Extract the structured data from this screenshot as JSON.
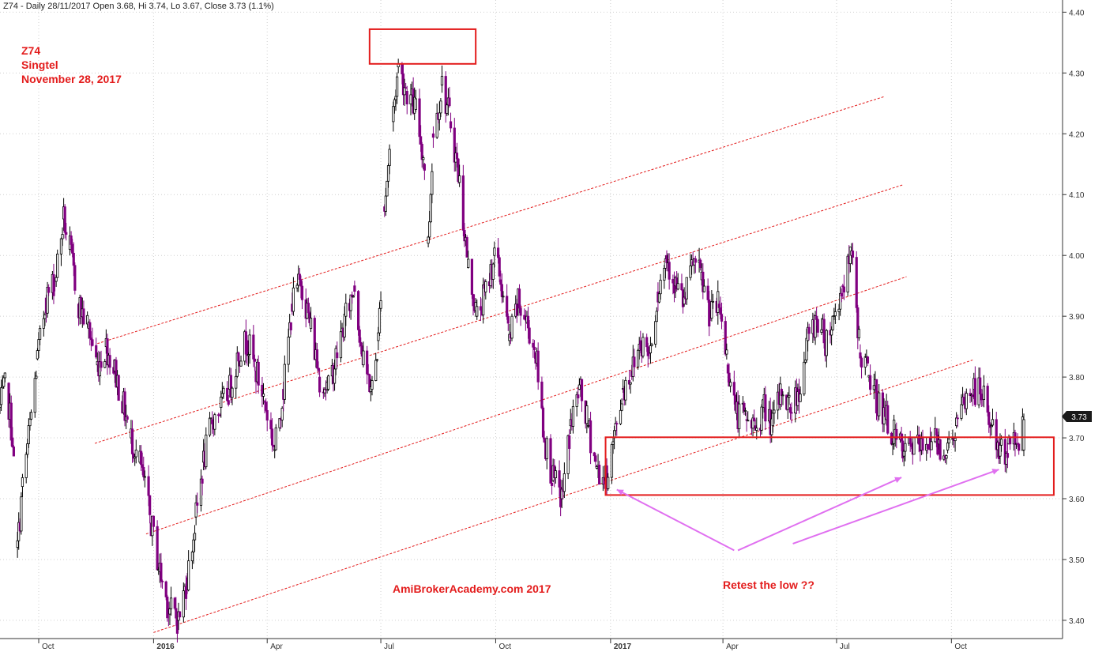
{
  "header": {
    "text": "Z74 - Daily 28/11/2017 Open 3.68, Hi 3.74, Lo 3.67, Close 3.73 (1.1%)"
  },
  "annotations": {
    "symbol": "Z74",
    "name": "Singtel",
    "date": "November 28, 2017",
    "watermark": "AmiBrokerAcademy.com  2017",
    "retest": "Retest the low ??",
    "last_price_label": "3.73"
  },
  "colors": {
    "up": "#000000",
    "down": "#800080",
    "annotation": "#e31c1c",
    "arrow": "#e070f0",
    "grid": "#cfcfcf",
    "trendline": "#e31c1c"
  },
  "chart_data": {
    "type": "line",
    "ylim": [
      3.37,
      4.42
    ],
    "yticks": [
      "3.40",
      "3.50",
      "3.60",
      "3.70",
      "3.80",
      "3.90",
      "4.00",
      "4.10",
      "4.20",
      "4.30",
      "4.40"
    ],
    "xlim": [
      "2015-08-31",
      "2017-12-29"
    ],
    "xticks": [
      {
        "label": "Oct",
        "date": "2015-10-01",
        "bold": false
      },
      {
        "label": "2016",
        "date": "2016-01-01",
        "bold": true
      },
      {
        "label": "Apr",
        "date": "2016-04-01",
        "bold": false
      },
      {
        "label": "Jul",
        "date": "2016-07-01",
        "bold": false
      },
      {
        "label": "Oct",
        "date": "2016-10-01",
        "bold": false
      },
      {
        "label": "2017",
        "date": "2017-01-01",
        "bold": true
      },
      {
        "label": "Apr",
        "date": "2017-04-01",
        "bold": false
      },
      {
        "label": "Jul",
        "date": "2017-07-01",
        "bold": false
      },
      {
        "label": "Oct",
        "date": "2017-10-01",
        "bold": false
      }
    ],
    "grid": true,
    "series": [
      {
        "style": "candlestick-closes",
        "points": [
          {
            "d": "2015-08-31",
            "y": 3.75
          },
          {
            "d": "2015-09-05",
            "y": 3.79
          },
          {
            "d": "2015-09-10",
            "y": 3.7
          },
          {
            "d": "2015-09-14",
            "y": 3.52
          },
          {
            "d": "2015-09-18",
            "y": 3.62
          },
          {
            "d": "2015-09-24",
            "y": 3.72
          },
          {
            "d": "2015-09-30",
            "y": 3.83
          },
          {
            "d": "2015-10-07",
            "y": 3.93
          },
          {
            "d": "2015-10-14",
            "y": 3.96
          },
          {
            "d": "2015-10-21",
            "y": 4.06
          },
          {
            "d": "2015-10-26",
            "y": 4.01
          },
          {
            "d": "2015-11-02",
            "y": 3.92
          },
          {
            "d": "2015-11-10",
            "y": 3.88
          },
          {
            "d": "2015-11-17",
            "y": 3.82
          },
          {
            "d": "2015-11-24",
            "y": 3.85
          },
          {
            "d": "2015-12-01",
            "y": 3.81
          },
          {
            "d": "2015-12-07",
            "y": 3.76
          },
          {
            "d": "2015-12-14",
            "y": 3.7
          },
          {
            "d": "2015-12-21",
            "y": 3.66
          },
          {
            "d": "2015-12-30",
            "y": 3.56
          },
          {
            "d": "2016-01-06",
            "y": 3.48
          },
          {
            "d": "2016-01-13",
            "y": 3.42
          },
          {
            "d": "2016-01-21",
            "y": 3.4
          },
          {
            "d": "2016-01-28",
            "y": 3.47
          },
          {
            "d": "2016-02-04",
            "y": 3.57
          },
          {
            "d": "2016-02-10",
            "y": 3.66
          },
          {
            "d": "2016-02-17",
            "y": 3.73
          },
          {
            "d": "2016-02-24",
            "y": 3.75
          },
          {
            "d": "2016-03-02",
            "y": 3.78
          },
          {
            "d": "2016-03-09",
            "y": 3.84
          },
          {
            "d": "2016-03-16",
            "y": 3.86
          },
          {
            "d": "2016-03-23",
            "y": 3.81
          },
          {
            "d": "2016-03-30",
            "y": 3.76
          },
          {
            "d": "2016-04-07",
            "y": 3.68
          },
          {
            "d": "2016-04-14",
            "y": 3.78
          },
          {
            "d": "2016-04-21",
            "y": 3.92
          },
          {
            "d": "2016-04-28",
            "y": 3.96
          },
          {
            "d": "2016-05-06",
            "y": 3.88
          },
          {
            "d": "2016-05-13",
            "y": 3.8
          },
          {
            "d": "2016-05-20",
            "y": 3.78
          },
          {
            "d": "2016-05-27",
            "y": 3.84
          },
          {
            "d": "2016-06-03",
            "y": 3.9
          },
          {
            "d": "2016-06-10",
            "y": 3.95
          },
          {
            "d": "2016-06-17",
            "y": 3.82
          },
          {
            "d": "2016-06-24",
            "y": 3.78
          },
          {
            "d": "2016-06-29",
            "y": 3.86
          },
          {
            "d": "2016-07-04",
            "y": 4.08
          },
          {
            "d": "2016-07-10",
            "y": 4.22
          },
          {
            "d": "2016-07-15",
            "y": 4.31
          },
          {
            "d": "2016-07-22",
            "y": 4.27
          },
          {
            "d": "2016-07-29",
            "y": 4.24
          },
          {
            "d": "2016-08-05",
            "y": 4.15
          },
          {
            "d": "2016-08-08",
            "y": 4.02
          },
          {
            "d": "2016-08-12",
            "y": 4.2
          },
          {
            "d": "2016-08-19",
            "y": 4.28
          },
          {
            "d": "2016-08-26",
            "y": 4.22
          },
          {
            "d": "2016-09-02",
            "y": 4.12
          },
          {
            "d": "2016-09-09",
            "y": 3.98
          },
          {
            "d": "2016-09-16",
            "y": 3.9
          },
          {
            "d": "2016-09-23",
            "y": 3.94
          },
          {
            "d": "2016-09-30",
            "y": 4.0
          },
          {
            "d": "2016-10-05",
            "y": 3.96
          },
          {
            "d": "2016-10-12",
            "y": 3.86
          },
          {
            "d": "2016-10-19",
            "y": 3.92
          },
          {
            "d": "2016-10-26",
            "y": 3.89
          },
          {
            "d": "2016-11-02",
            "y": 3.84
          },
          {
            "d": "2016-11-09",
            "y": 3.7
          },
          {
            "d": "2016-11-16",
            "y": 3.63
          },
          {
            "d": "2016-11-23",
            "y": 3.6
          },
          {
            "d": "2016-11-30",
            "y": 3.72
          },
          {
            "d": "2016-12-07",
            "y": 3.78
          },
          {
            "d": "2016-12-14",
            "y": 3.72
          },
          {
            "d": "2016-12-21",
            "y": 3.65
          },
          {
            "d": "2016-12-28",
            "y": 3.63
          },
          {
            "d": "2017-01-04",
            "y": 3.7
          },
          {
            "d": "2017-01-11",
            "y": 3.78
          },
          {
            "d": "2017-01-18",
            "y": 3.81
          },
          {
            "d": "2017-01-25",
            "y": 3.86
          },
          {
            "d": "2017-02-01",
            "y": 3.84
          },
          {
            "d": "2017-02-08",
            "y": 3.94
          },
          {
            "d": "2017-02-15",
            "y": 4.0
          },
          {
            "d": "2017-02-22",
            "y": 3.95
          },
          {
            "d": "2017-03-01",
            "y": 3.92
          },
          {
            "d": "2017-03-08",
            "y": 3.99
          },
          {
            "d": "2017-03-15",
            "y": 3.96
          },
          {
            "d": "2017-03-22",
            "y": 3.9
          },
          {
            "d": "2017-03-29",
            "y": 3.92
          },
          {
            "d": "2017-04-05",
            "y": 3.82
          },
          {
            "d": "2017-04-12",
            "y": 3.74
          },
          {
            "d": "2017-04-20",
            "y": 3.73
          },
          {
            "d": "2017-04-27",
            "y": 3.72
          },
          {
            "d": "2017-05-04",
            "y": 3.75
          },
          {
            "d": "2017-05-11",
            "y": 3.72
          },
          {
            "d": "2017-05-18",
            "y": 3.78
          },
          {
            "d": "2017-05-25",
            "y": 3.75
          },
          {
            "d": "2017-06-01",
            "y": 3.78
          },
          {
            "d": "2017-06-08",
            "y": 3.86
          },
          {
            "d": "2017-06-15",
            "y": 3.9
          },
          {
            "d": "2017-06-22",
            "y": 3.86
          },
          {
            "d": "2017-06-29",
            "y": 3.9
          },
          {
            "d": "2017-07-06",
            "y": 3.95
          },
          {
            "d": "2017-07-13",
            "y": 4.0
          },
          {
            "d": "2017-07-20",
            "y": 3.84
          },
          {
            "d": "2017-07-27",
            "y": 3.8
          },
          {
            "d": "2017-08-03",
            "y": 3.76
          },
          {
            "d": "2017-08-10",
            "y": 3.73
          },
          {
            "d": "2017-08-17",
            "y": 3.7
          },
          {
            "d": "2017-08-24",
            "y": 3.67
          },
          {
            "d": "2017-08-31",
            "y": 3.69
          },
          {
            "d": "2017-09-07",
            "y": 3.68
          },
          {
            "d": "2017-09-14",
            "y": 3.7
          },
          {
            "d": "2017-09-21",
            "y": 3.69
          },
          {
            "d": "2017-09-28",
            "y": 3.68
          },
          {
            "d": "2017-10-05",
            "y": 3.72
          },
          {
            "d": "2017-10-12",
            "y": 3.76
          },
          {
            "d": "2017-10-19",
            "y": 3.78
          },
          {
            "d": "2017-10-26",
            "y": 3.77
          },
          {
            "d": "2017-11-02",
            "y": 3.72
          },
          {
            "d": "2017-11-09",
            "y": 3.67
          },
          {
            "d": "2017-11-16",
            "y": 3.69
          },
          {
            "d": "2017-11-22",
            "y": 3.69
          },
          {
            "d": "2017-11-28",
            "y": 3.73
          }
        ]
      }
    ],
    "trendlines": [
      {
        "from": {
          "d": "2015-11-17",
          "y": 3.855
        },
        "to": {
          "d": "2017-08-08",
          "y": 4.261
        }
      },
      {
        "from": {
          "d": "2015-11-15",
          "y": 3.691
        },
        "to": {
          "d": "2017-08-23",
          "y": 4.116
        }
      },
      {
        "from": {
          "d": "2015-12-26",
          "y": 3.542
        },
        "to": {
          "d": "2017-08-26",
          "y": 3.965
        }
      },
      {
        "from": {
          "d": "2016-01-01",
          "y": 3.38
        },
        "to": {
          "d": "2017-10-18",
          "y": 3.828
        }
      }
    ],
    "boxes": [
      {
        "from": {
          "d": "2016-06-22",
          "y": 4.372
        },
        "to": {
          "d": "2016-09-15",
          "y": 4.315
        }
      },
      {
        "from": {
          "d": "2016-12-28",
          "y": 3.701
        },
        "to": {
          "d": "2017-12-22",
          "y": 3.606
        }
      }
    ],
    "arrows": [
      {
        "from": {
          "d": "2017-04-10",
          "y": 3.515
        },
        "to": {
          "d": "2017-01-06",
          "y": 3.615
        }
      },
      {
        "from": {
          "d": "2017-04-13",
          "y": 3.515
        },
        "to": {
          "d": "2017-08-22",
          "y": 3.635
        }
      },
      {
        "from": {
          "d": "2017-05-27",
          "y": 3.526
        },
        "to": {
          "d": "2017-11-08",
          "y": 3.648
        }
      }
    ]
  }
}
